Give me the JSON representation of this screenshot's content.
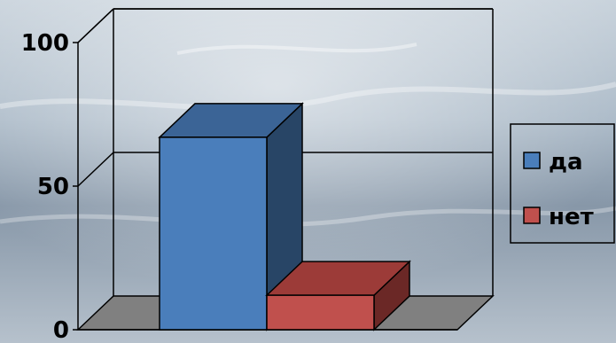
{
  "chart_data": {
    "type": "bar",
    "style": "3d-clustered-column",
    "categories": [
      ""
    ],
    "series": [
      {
        "name": "да",
        "values": [
          67
        ],
        "color": "#4A7EBB",
        "top_color": "#3B6496",
        "side_color": "#284566"
      },
      {
        "name": "нет",
        "values": [
          12
        ],
        "color": "#C0504D",
        "top_color": "#9C3B38",
        "side_color": "#6B2826"
      }
    ],
    "ylim": [
      0,
      100
    ],
    "yticks": [
      0,
      50,
      100
    ],
    "ytick_labels": [
      "0",
      "50",
      "100"
    ],
    "grid": true,
    "legend": "right",
    "title": "",
    "xlabel": "",
    "ylabel": ""
  }
}
